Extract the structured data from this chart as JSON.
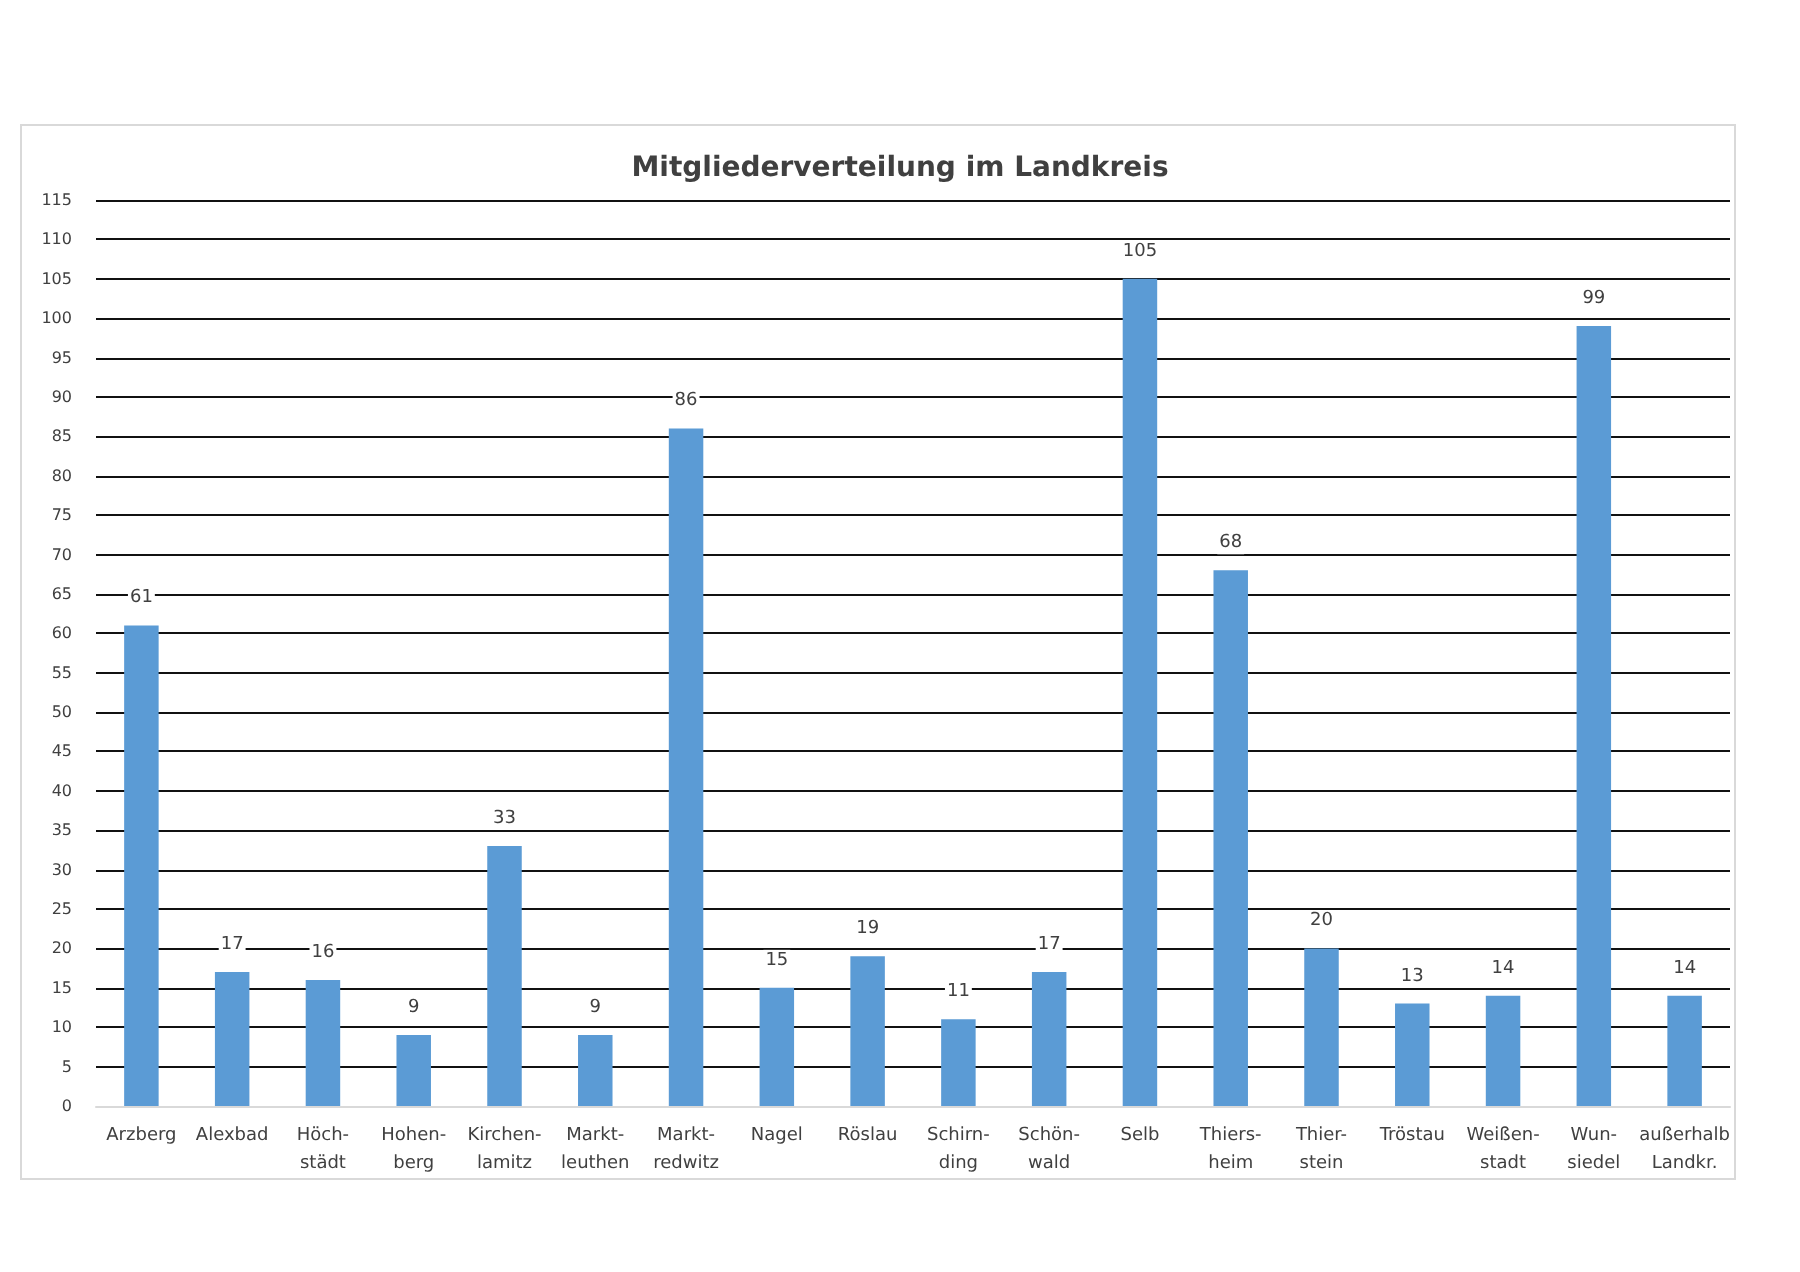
{
  "chart_data": {
    "type": "bar",
    "title": "Mitgliederverteilung im Landkreis",
    "categories": [
      "Arzberg",
      "Alexbad",
      "Höch-\nstädt",
      "Hohen-\nberg",
      "Kirchen-\nlamitz",
      "Markt-\nleuthen",
      "Markt-\nredwitz",
      "Nagel",
      "Röslau",
      "Schirn-\nding",
      "Schön-\nwald",
      "Selb",
      "Thiers-\nheim",
      "Thier-\nstein",
      "Tröstau",
      "Weißen-\nstadt",
      "Wun-\nsiedel",
      "außerhalb\nLandkr."
    ],
    "values": [
      61,
      17,
      16,
      9,
      33,
      9,
      86,
      15,
      19,
      11,
      17,
      105,
      68,
      20,
      13,
      14,
      99,
      14
    ],
    "color": "#5b9bd5",
    "ylim": [
      0,
      115
    ],
    "yticks": [
      0,
      5,
      10,
      15,
      20,
      25,
      30,
      35,
      40,
      45,
      50,
      55,
      60,
      65,
      70,
      75,
      80,
      85,
      90,
      95,
      100,
      105,
      110,
      115
    ],
    "grid": "y",
    "data_labels": true
  }
}
